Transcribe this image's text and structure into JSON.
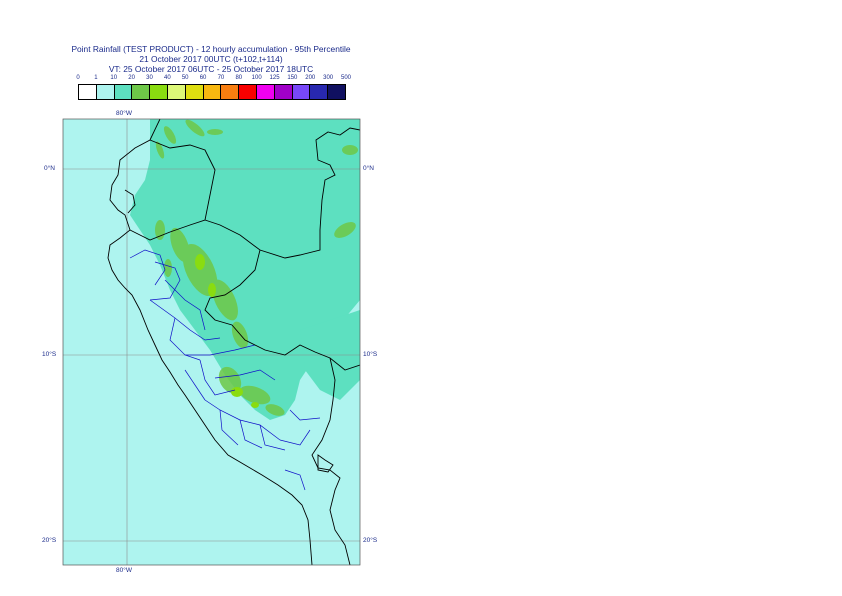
{
  "title": {
    "line1": "Point Rainfall (TEST PRODUCT) - 12 hourly accumulation - 95th Percentile",
    "line2": "21 October 2017 00UTC (t+102,t+114)",
    "line3": "VT: 25 October 2017 06UTC - 25 October 2017 18UTC"
  },
  "legend": {
    "labels": [
      "0",
      "1",
      "10",
      "20",
      "30",
      "40",
      "50",
      "60",
      "70",
      "80",
      "100",
      "125",
      "150",
      "200",
      "300",
      "500"
    ],
    "colors": [
      "#ffffff",
      "#aef4ef",
      "#5de0c0",
      "#6ec848",
      "#8adc10",
      "#ddf878",
      "#dede10",
      "#f8b810",
      "#f87e10",
      "#f80000",
      "#f000f0",
      "#a000c8",
      "#7848f8",
      "#2828b0",
      "#101060"
    ]
  },
  "axes": {
    "top_lon": "80°W",
    "bottom_lon": "80°W",
    "left_lats": [
      "0°N",
      "10°S",
      "20°S"
    ],
    "right_lats": [
      "0°N",
      "10°S",
      "20°S"
    ]
  },
  "map_colors": {
    "ocean_light": "#aef4ef",
    "land_green": "#5de0c0",
    "rain_light_green": "#6ec848",
    "rain_yellow_green": "#8adc10",
    "coast": "#000000",
    "admin": "#1010c8",
    "grid": "#8c8c8c"
  }
}
